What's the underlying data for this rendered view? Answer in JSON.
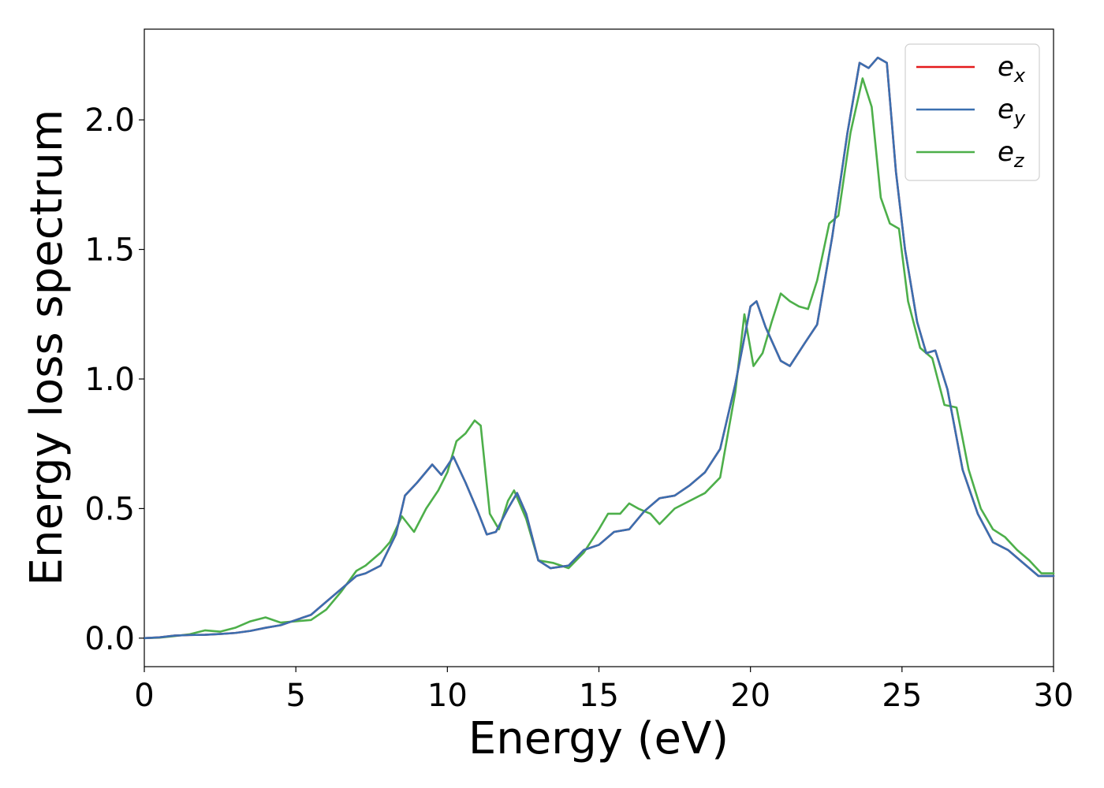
{
  "chart_data": {
    "type": "line",
    "title": "",
    "xlabel": "Energy (eV)",
    "ylabel": "Energy loss spectrum",
    "xlim": [
      0,
      30
    ],
    "ylim": [
      -0.11,
      2.35
    ],
    "xticks": [
      0,
      5,
      10,
      15,
      20,
      25,
      30
    ],
    "yticks": [
      0.0,
      0.5,
      1.0,
      1.5,
      2.0
    ],
    "xtick_labels": [
      "0",
      "5",
      "10",
      "15",
      "20",
      "25",
      "30"
    ],
    "ytick_labels": [
      "0.0",
      "0.5",
      "1.0",
      "1.5",
      "2.0"
    ],
    "grid": false,
    "legend_position": "top-right",
    "series": [
      {
        "name": "e_x",
        "legend_base": "e",
        "legend_sub": "x",
        "color": "#e41a1c",
        "x": [
          0,
          0.5,
          1,
          1.5,
          2,
          2.5,
          3,
          3.5,
          4,
          4.5,
          5,
          5.5,
          6,
          6.5,
          7,
          7.3,
          7.8,
          8.3,
          8.6,
          9,
          9.5,
          9.8,
          10.2,
          10.6,
          11,
          11.3,
          11.6,
          12,
          12.3,
          12.6,
          13,
          13.4,
          14,
          14.5,
          15,
          15.5,
          16,
          16.5,
          17,
          17.5,
          18,
          18.5,
          19,
          19.5,
          20,
          20.2,
          20.5,
          21,
          21.3,
          21.8,
          22.2,
          22.7,
          23.2,
          23.6,
          23.9,
          24.2,
          24.5,
          24.8,
          25.1,
          25.5,
          25.8,
          26.1,
          26.5,
          27,
          27.5,
          28,
          28.5,
          29,
          29.5,
          30
        ],
        "y": [
          0,
          0.003,
          0.01,
          0.012,
          0.013,
          0.016,
          0.02,
          0.028,
          0.04,
          0.05,
          0.07,
          0.09,
          0.14,
          0.19,
          0.24,
          0.25,
          0.28,
          0.4,
          0.55,
          0.6,
          0.67,
          0.63,
          0.7,
          0.6,
          0.49,
          0.4,
          0.41,
          0.5,
          0.56,
          0.48,
          0.3,
          0.27,
          0.28,
          0.34,
          0.36,
          0.41,
          0.42,
          0.49,
          0.54,
          0.55,
          0.59,
          0.64,
          0.73,
          0.98,
          1.28,
          1.3,
          1.2,
          1.07,
          1.05,
          1.14,
          1.21,
          1.55,
          1.95,
          2.22,
          2.2,
          2.24,
          2.22,
          1.8,
          1.5,
          1.22,
          1.1,
          1.11,
          0.96,
          0.65,
          0.48,
          0.37,
          0.34,
          0.29,
          0.24,
          0.24
        ]
      },
      {
        "name": "e_y",
        "legend_base": "e",
        "legend_sub": "y",
        "color": "#3a6fb0",
        "x": [
          0,
          0.5,
          1,
          1.5,
          2,
          2.5,
          3,
          3.5,
          4,
          4.5,
          5,
          5.5,
          6,
          6.5,
          7,
          7.3,
          7.8,
          8.3,
          8.6,
          9,
          9.5,
          9.8,
          10.2,
          10.6,
          11,
          11.3,
          11.6,
          12,
          12.3,
          12.6,
          13,
          13.4,
          14,
          14.5,
          15,
          15.5,
          16,
          16.5,
          17,
          17.5,
          18,
          18.5,
          19,
          19.5,
          20,
          20.2,
          20.5,
          21,
          21.3,
          21.8,
          22.2,
          22.7,
          23.2,
          23.6,
          23.9,
          24.2,
          24.5,
          24.8,
          25.1,
          25.5,
          25.8,
          26.1,
          26.5,
          27,
          27.5,
          28,
          28.5,
          29,
          29.5,
          30
        ],
        "y": [
          0,
          0.003,
          0.01,
          0.012,
          0.013,
          0.016,
          0.02,
          0.028,
          0.04,
          0.05,
          0.07,
          0.09,
          0.14,
          0.19,
          0.24,
          0.25,
          0.28,
          0.4,
          0.55,
          0.6,
          0.67,
          0.63,
          0.7,
          0.6,
          0.49,
          0.4,
          0.41,
          0.5,
          0.56,
          0.48,
          0.3,
          0.27,
          0.28,
          0.34,
          0.36,
          0.41,
          0.42,
          0.49,
          0.54,
          0.55,
          0.59,
          0.64,
          0.73,
          0.98,
          1.28,
          1.3,
          1.2,
          1.07,
          1.05,
          1.14,
          1.21,
          1.55,
          1.95,
          2.22,
          2.2,
          2.24,
          2.22,
          1.8,
          1.5,
          1.22,
          1.1,
          1.11,
          0.96,
          0.65,
          0.48,
          0.37,
          0.34,
          0.29,
          0.24,
          0.24
        ]
      },
      {
        "name": "e_z",
        "legend_base": "e",
        "legend_sub": "z",
        "color": "#4daf4a",
        "x": [
          0,
          0.5,
          1,
          1.5,
          2,
          2.5,
          3,
          3.5,
          4,
          4.5,
          5,
          5.5,
          6,
          6.5,
          7,
          7.3,
          7.8,
          8.1,
          8.5,
          8.9,
          9.3,
          9.7,
          10,
          10.3,
          10.6,
          10.9,
          11.1,
          11.4,
          11.7,
          12,
          12.2,
          12.6,
          13,
          13.5,
          14,
          14.5,
          15,
          15.3,
          15.7,
          16,
          16.3,
          16.7,
          17,
          17.5,
          18,
          18.5,
          19,
          19.5,
          19.8,
          20.1,
          20.4,
          20.7,
          21,
          21.3,
          21.6,
          21.9,
          22.2,
          22.6,
          22.9,
          23.3,
          23.7,
          24,
          24.3,
          24.6,
          24.9,
          25.2,
          25.6,
          26,
          26.4,
          26.8,
          27.2,
          27.6,
          28,
          28.4,
          28.8,
          29.2,
          29.6,
          30
        ],
        "y": [
          0,
          0.002,
          0.008,
          0.015,
          0.03,
          0.025,
          0.04,
          0.065,
          0.08,
          0.06,
          0.065,
          0.07,
          0.11,
          0.18,
          0.26,
          0.28,
          0.33,
          0.37,
          0.47,
          0.41,
          0.5,
          0.57,
          0.64,
          0.76,
          0.79,
          0.84,
          0.82,
          0.48,
          0.42,
          0.53,
          0.57,
          0.46,
          0.3,
          0.29,
          0.27,
          0.33,
          0.42,
          0.48,
          0.48,
          0.52,
          0.5,
          0.48,
          0.44,
          0.5,
          0.53,
          0.56,
          0.62,
          0.95,
          1.25,
          1.05,
          1.1,
          1.22,
          1.33,
          1.3,
          1.28,
          1.27,
          1.38,
          1.6,
          1.63,
          1.95,
          2.16,
          2.05,
          1.7,
          1.6,
          1.58,
          1.3,
          1.12,
          1.08,
          0.9,
          0.89,
          0.65,
          0.5,
          0.42,
          0.39,
          0.34,
          0.3,
          0.25,
          0.25
        ]
      }
    ]
  }
}
